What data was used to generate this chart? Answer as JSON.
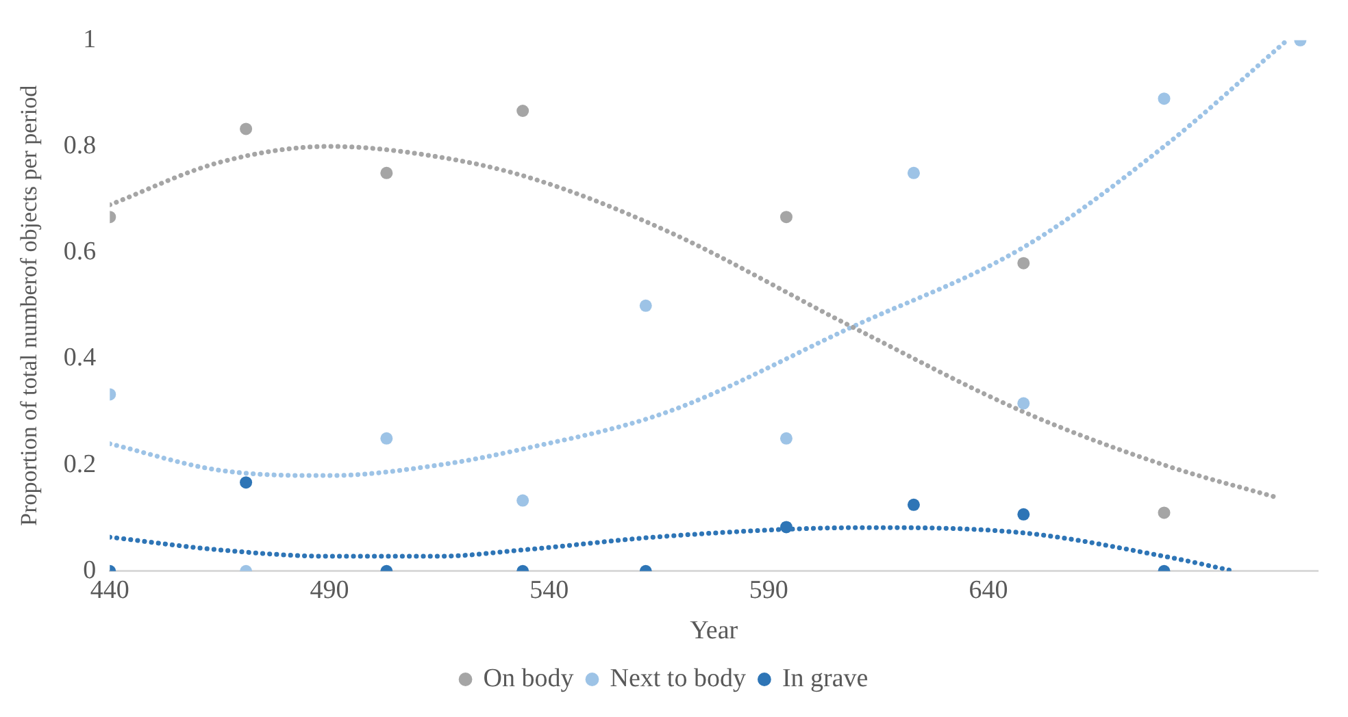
{
  "chart_data": {
    "type": "scatter",
    "xlabel": "Year",
    "ylabel": "Proportion of total numberof objects per period",
    "x": [
      440,
      471,
      503,
      534,
      562,
      594,
      623,
      648,
      680,
      711
    ],
    "xlim": [
      440,
      715
    ],
    "xticks": [
      440,
      490,
      540,
      590,
      640
    ],
    "ylim": [
      0,
      1
    ],
    "yticks": [
      0,
      0.2,
      0.4,
      0.6,
      0.8,
      1
    ],
    "grid": false,
    "legend": "bottom",
    "marker": "circle",
    "series": [
      {
        "name": "On body",
        "color": "#a5a5a5",
        "values": [
          0.667,
          0.833,
          0.75,
          0.867,
          null,
          0.667,
          null,
          0.58,
          0.11,
          null
        ]
      },
      {
        "name": "Next to body",
        "color": "#9dc3e6",
        "values": [
          0.333,
          0,
          0.25,
          0.133,
          0.5,
          0.25,
          0.75,
          0.316,
          0.89,
          1
        ]
      },
      {
        "name": "In grave",
        "color": "#2e75b6",
        "values": [
          0,
          0.167,
          0,
          0,
          0,
          0.083,
          0.125,
          0.107,
          0,
          null
        ]
      },
      {
        "type": "line",
        "line_style": "dotted",
        "marker": "none",
        "color": "#a5a5a5",
        "x": [
          440,
          465,
          490,
          515,
          536,
          567,
          609,
          648,
          680,
          706
        ],
        "values": [
          0.69,
          0.77,
          0.8,
          0.78,
          0.74,
          0.64,
          0.46,
          0.3,
          0.2,
          0.138
        ]
      },
      {
        "type": "line",
        "line_style": "dotted",
        "marker": "none",
        "color": "#9dc3e6",
        "x": [
          440,
          465,
          490,
          515,
          534,
          567,
          609,
          648,
          680,
          708
        ],
        "values": [
          0.24,
          0.19,
          0.18,
          0.2,
          0.23,
          0.3,
          0.46,
          0.61,
          0.8,
          1
        ]
      },
      {
        "type": "line",
        "line_style": "dotted",
        "marker": "none",
        "color": "#2e75b6",
        "x": [
          440,
          465,
          490,
          515,
          534,
          567,
          612,
          648,
          680,
          696
        ],
        "values": [
          0.064,
          0.04,
          0.028,
          0.028,
          0.04,
          0.066,
          0.082,
          0.072,
          0.028,
          0
        ]
      }
    ]
  }
}
